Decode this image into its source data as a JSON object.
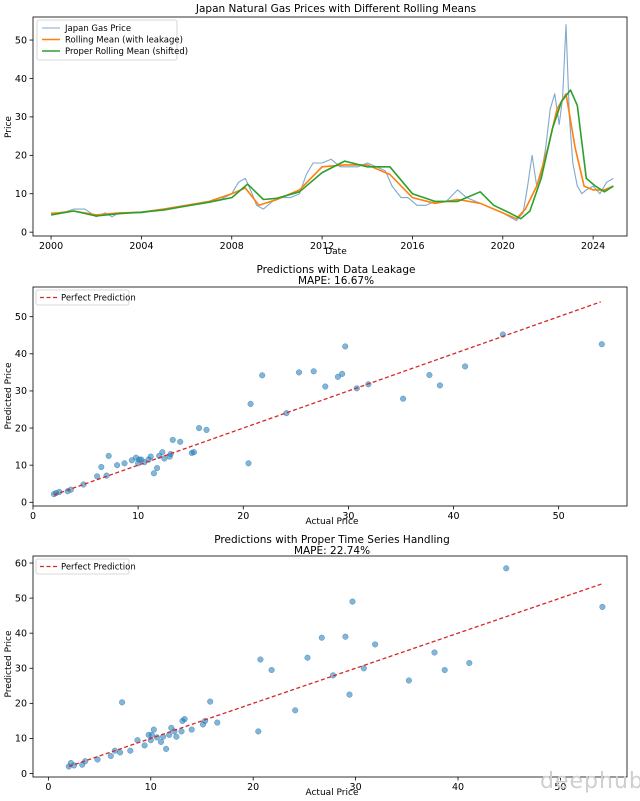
{
  "watermark": "deephub",
  "chart_data": [
    {
      "type": "line",
      "title": "Japan Natural Gas Prices with Different Rolling Means",
      "xlabel": "Date",
      "ylabel": "Price",
      "xlim": [
        1999.2,
        2025.5
      ],
      "ylim": [
        -1,
        56
      ],
      "xticks": [
        2000,
        2004,
        2008,
        2012,
        2016,
        2020,
        2024
      ],
      "yticks": [
        0,
        10,
        20,
        30,
        40,
        50
      ],
      "legend": "top-left",
      "series": [
        {
          "name": "Japan Gas Price",
          "color": "#7fa9cf",
          "x": [
            2000,
            2000.5,
            2001,
            2001.5,
            2002,
            2002.4,
            2002.7,
            2003,
            2003.5,
            2004,
            2004.5,
            2005,
            2005.5,
            2006,
            2006.5,
            2007,
            2007.5,
            2008,
            2008.3,
            2008.6,
            2008.9,
            2009.1,
            2009.4,
            2009.8,
            2010.2,
            2010.6,
            2011,
            2011.3,
            2011.6,
            2012,
            2012.4,
            2012.8,
            2013.2,
            2013.6,
            2014,
            2014.4,
            2014.8,
            2015.1,
            2015.5,
            2015.8,
            2016.2,
            2016.6,
            2017,
            2017.5,
            2018,
            2018.4,
            2018.8,
            2019.2,
            2019.6,
            2020,
            2020.3,
            2020.6,
            2020.9,
            2021.1,
            2021.3,
            2021.5,
            2021.7,
            2021.9,
            2022.1,
            2022.3,
            2022.5,
            2022.65,
            2022.8,
            2022.95,
            2023.1,
            2023.3,
            2023.5,
            2023.7,
            2024,
            2024.3,
            2024.6,
            2024.9
          ],
          "values": [
            5,
            5,
            6,
            6,
            4,
            5,
            4,
            5,
            5,
            5,
            5.5,
            6,
            6.5,
            7,
            7.5,
            8,
            8.5,
            10,
            13,
            14,
            10,
            7,
            6,
            8,
            9,
            9,
            10,
            15,
            18,
            18,
            19,
            17,
            17,
            17,
            18,
            17,
            16,
            12,
            9,
            9,
            7,
            7,
            8,
            8,
            11,
            9,
            8,
            7,
            6,
            5,
            4,
            3,
            5,
            12,
            20,
            12,
            15,
            22,
            32,
            36,
            28,
            35,
            54,
            30,
            18,
            12,
            10,
            11,
            12,
            10,
            13,
            14
          ]
        },
        {
          "name": "Rolling Mean (with leakage)",
          "color": "#ff7f0e",
          "x": [
            2000,
            2001,
            2002,
            2003,
            2004,
            2005,
            2006,
            2007,
            2008,
            2008.6,
            2009.2,
            2010,
            2011,
            2012,
            2013,
            2014,
            2015,
            2016,
            2017,
            2018,
            2019,
            2020,
            2020.6,
            2021,
            2021.5,
            2022,
            2022.4,
            2022.8,
            2023.2,
            2023.6,
            2024,
            2024.5,
            2024.9
          ],
          "values": [
            4.8,
            5.5,
            4.5,
            5,
            5.2,
            6,
            7,
            8,
            10,
            11.5,
            7,
            8.5,
            11,
            17,
            17.5,
            17.5,
            15,
            9,
            7.5,
            8.5,
            7.5,
            5,
            3.5,
            6,
            12,
            22,
            32,
            36,
            22,
            12,
            11,
            11,
            12
          ]
        },
        {
          "name": "Proper Rolling Mean (shifted)",
          "color": "#2ca02c",
          "x": [
            2000,
            2001,
            2002,
            2003,
            2004,
            2005,
            2006,
            2007,
            2008,
            2008.7,
            2009.4,
            2010,
            2011,
            2012,
            2013,
            2014,
            2015,
            2016,
            2017,
            2018,
            2019,
            2019.6,
            2020.3,
            2020.8,
            2021.2,
            2021.7,
            2022.2,
            2022.6,
            2023,
            2023.3,
            2023.7,
            2024.1,
            2024.5,
            2024.9
          ],
          "values": [
            4.5,
            5.5,
            4.2,
            4.8,
            5.2,
            5.8,
            6.8,
            7.8,
            9,
            12.5,
            8.5,
            8.8,
            10.5,
            15.5,
            18.5,
            17,
            17,
            10,
            8,
            8,
            10.5,
            7,
            5,
            3.5,
            5.5,
            14,
            27,
            34,
            37,
            33,
            14,
            12,
            10.5,
            12
          ]
        }
      ]
    },
    {
      "type": "scatter",
      "title": "Predictions with Data Leakage",
      "subtitle": "MAPE: 16.67%",
      "xlabel": "Actual Price",
      "ylabel": "Predicted Price",
      "xlim": [
        0,
        56.5
      ],
      "ylim": [
        -1,
        58
      ],
      "xticks": [
        0,
        10,
        20,
        30,
        40,
        50
      ],
      "yticks": [
        0,
        10,
        20,
        30,
        40,
        50
      ],
      "legend": "top-left",
      "reference_line": {
        "name": "Perfect Prediction",
        "color": "#d62728",
        "from": [
          2,
          2
        ],
        "to": [
          54,
          54
        ]
      },
      "points_color": "#1f77b4",
      "x": [
        2,
        2.2,
        2.5,
        3.3,
        3.6,
        4.8,
        6.1,
        6.5,
        7.0,
        7.2,
        8.0,
        8.7,
        9.4,
        9.8,
        10.0,
        10.1,
        10.3,
        10.6,
        11.0,
        11.2,
        11.5,
        11.8,
        12.0,
        12.3,
        12.5,
        13.0,
        13.1,
        13.3,
        14.0,
        15.1,
        15.3,
        15.8,
        16.5,
        20.5,
        20.7,
        21.8,
        24.1,
        25.3,
        26.7,
        27.8,
        29.0,
        29.4,
        29.7,
        30.8,
        31.9,
        35.2,
        37.7,
        38.7,
        41.1,
        44.7,
        54.1
      ],
      "y": [
        2.2,
        2.5,
        2.8,
        3.0,
        3.4,
        4.8,
        7.0,
        9.5,
        7.2,
        12.5,
        10,
        10.5,
        11.3,
        12,
        10.5,
        11.5,
        11.5,
        10.8,
        11.5,
        12.3,
        7.8,
        9.2,
        12.5,
        13.5,
        11.8,
        12.3,
        13.0,
        16.8,
        16.3,
        13.3,
        13.5,
        20.0,
        19.5,
        10.5,
        26.5,
        34.2,
        24,
        35.0,
        35.3,
        31.2,
        33.8,
        34.6,
        42.0,
        30.7,
        31.8,
        27.9,
        34.3,
        31.5,
        36.6,
        45.2,
        42.6
      ]
    },
    {
      "type": "scatter",
      "title": "Predictions with Proper Time Series Handling",
      "subtitle": "MAPE: 22.74%",
      "xlabel": "Actual Price",
      "ylabel": "Predicted Price",
      "xlim": [
        -1.5,
        56.5
      ],
      "ylim": [
        -1,
        62
      ],
      "xticks": [
        0,
        10,
        20,
        30,
        40,
        50
      ],
      "yticks": [
        0,
        10,
        20,
        30,
        40,
        50,
        60
      ],
      "legend": "top-left",
      "reference_line": {
        "name": "Perfect Prediction",
        "color": "#d62728",
        "from": [
          2,
          2
        ],
        "to": [
          54,
          54
        ]
      },
      "points_color": "#1f77b4",
      "x": [
        2,
        2.2,
        2.5,
        3.3,
        3.6,
        4.8,
        6.1,
        6.5,
        7.0,
        7.2,
        8.0,
        8.7,
        9.4,
        9.8,
        10.0,
        10.1,
        10.3,
        10.6,
        11.0,
        11.2,
        11.5,
        11.8,
        12.0,
        12.3,
        12.5,
        13.0,
        13.1,
        13.3,
        14.0,
        15.1,
        15.3,
        15.8,
        16.5,
        20.5,
        20.7,
        21.8,
        24.1,
        25.3,
        26.7,
        27.8,
        29.0,
        29.4,
        29.7,
        30.8,
        31.9,
        35.2,
        37.7,
        38.7,
        41.1,
        44.7,
        54.1
      ],
      "y": [
        2.0,
        3.0,
        2.3,
        2.5,
        3.5,
        4.0,
        5.0,
        6.5,
        6.0,
        20.3,
        6.5,
        9.5,
        8.0,
        11,
        9.5,
        11.0,
        12.5,
        10.3,
        9.0,
        10.5,
        7.0,
        11.0,
        13.0,
        12.0,
        10.5,
        12.0,
        15.0,
        15.5,
        12.5,
        14.0,
        15.0,
        20.5,
        14.5,
        12.0,
        32.5,
        29.5,
        18.0,
        33.0,
        38.7,
        28.0,
        39.0,
        22.5,
        49.0,
        30.0,
        36.8,
        26.5,
        34.5,
        29.5,
        31.5,
        58.5,
        47.5
      ]
    }
  ]
}
